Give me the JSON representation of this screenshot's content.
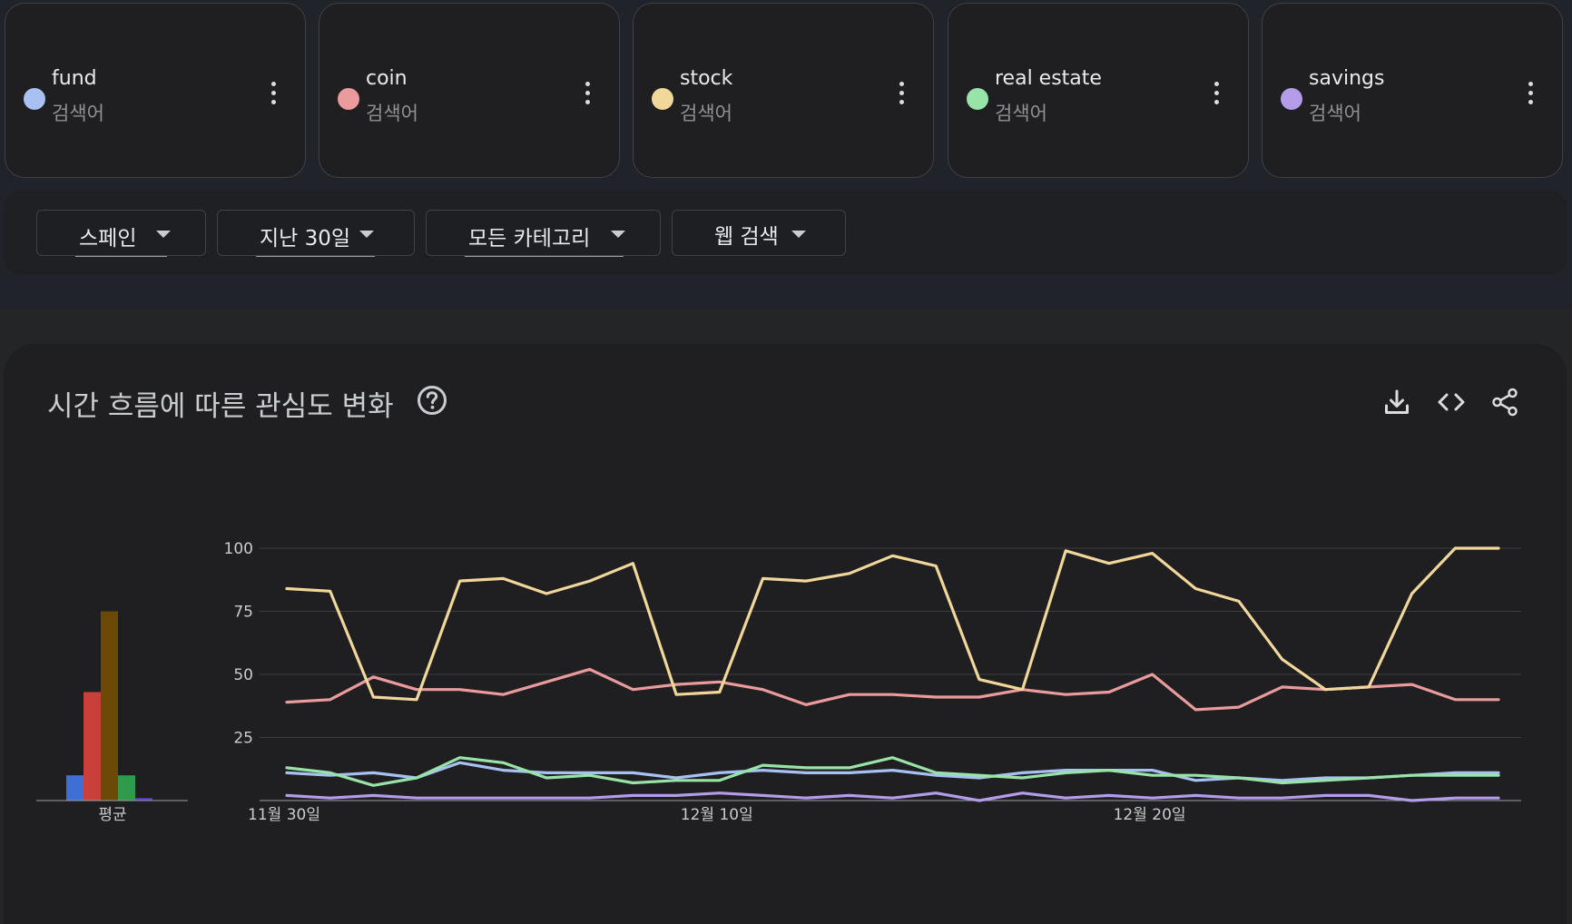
{
  "terms": [
    {
      "name": "fund",
      "type": "검색어",
      "color": "#a8c1f2"
    },
    {
      "name": "coin",
      "type": "검색어",
      "color": "#eb9b9b"
    },
    {
      "name": "stock",
      "type": "검색어",
      "color": "#f1d79a"
    },
    {
      "name": "real estate",
      "type": "검색어",
      "color": "#98e3a8"
    },
    {
      "name": "savings",
      "type": "검색어",
      "color": "#b49ce8"
    }
  ],
  "filters": {
    "region": "스페인",
    "period": "지난 30일",
    "category": "모든 카테고리",
    "search_type": "웹 검색"
  },
  "panel": {
    "title": "시간 흐름에 따른 관심도 변화",
    "help_icon": "help-circle-icon",
    "download_icon": "download-icon",
    "embed_icon": "code-icon",
    "share_icon": "share-icon"
  },
  "chart_data": [
    {
      "type": "bar",
      "xlabel": "평균",
      "categories": [
        "fund",
        "coin",
        "stock",
        "real estate",
        "savings"
      ],
      "values": [
        10,
        43,
        75,
        10,
        1
      ],
      "colors": [
        "#3f6fd4",
        "#c9403a",
        "#6b4a08",
        "#2f9a4c",
        "#5b3cc8"
      ],
      "ylim": [
        0,
        100
      ]
    },
    {
      "type": "line",
      "x": [
        "11월 30일",
        "12월 1일",
        "12월 2일",
        "12월 3일",
        "12월 4일",
        "12월 5일",
        "12월 6일",
        "12월 7일",
        "12월 8일",
        "12월 9일",
        "12월 10일",
        "12월 11일",
        "12월 12일",
        "12월 13일",
        "12월 14일",
        "12월 15일",
        "12월 16일",
        "12월 17일",
        "12월 18일",
        "12월 19일",
        "12월 20일",
        "12월 21일",
        "12월 22일",
        "12월 23일",
        "12월 24일",
        "12월 25일",
        "12월 26일",
        "12월 27일",
        "12월 28일"
      ],
      "x_ticks": [
        "11월 30일",
        "12월 10일",
        "12월 20일"
      ],
      "y_ticks": [
        "25",
        "50",
        "75",
        "100"
      ],
      "ylim": [
        0,
        100
      ],
      "grid": true,
      "series": [
        {
          "name": "stock",
          "color": "#f1d79a",
          "values": [
            84,
            83,
            41,
            40,
            87,
            88,
            82,
            87,
            94,
            42,
            43,
            88,
            87,
            90,
            97,
            93,
            48,
            44,
            99,
            94,
            98,
            84,
            79,
            56,
            44,
            45,
            82,
            100,
            100
          ]
        },
        {
          "name": "coin",
          "color": "#eb9b9b",
          "values": [
            39,
            40,
            49,
            44,
            44,
            42,
            47,
            52,
            44,
            46,
            47,
            44,
            38,
            42,
            42,
            41,
            41,
            44,
            42,
            43,
            50,
            36,
            37,
            45,
            44,
            45,
            46,
            40,
            40
          ]
        },
        {
          "name": "real estate",
          "color": "#98e3a8",
          "values": [
            13,
            11,
            6,
            9,
            17,
            15,
            9,
            10,
            7,
            8,
            8,
            14,
            13,
            13,
            17,
            11,
            10,
            9,
            11,
            12,
            10,
            10,
            9,
            7,
            8,
            9,
            10,
            10,
            10
          ]
        },
        {
          "name": "fund",
          "color": "#a8c1f2",
          "values": [
            11,
            10,
            11,
            9,
            15,
            12,
            11,
            11,
            11,
            9,
            11,
            12,
            11,
            11,
            12,
            10,
            9,
            11,
            12,
            12,
            12,
            8,
            9,
            8,
            9,
            9,
            10,
            11,
            11
          ]
        },
        {
          "name": "savings",
          "color": "#b49ce8",
          "values": [
            2,
            1,
            2,
            1,
            1,
            1,
            1,
            1,
            2,
            2,
            3,
            2,
            1,
            2,
            1,
            3,
            0,
            3,
            1,
            2,
            1,
            2,
            1,
            1,
            2,
            2,
            0,
            1,
            1
          ]
        }
      ]
    }
  ]
}
